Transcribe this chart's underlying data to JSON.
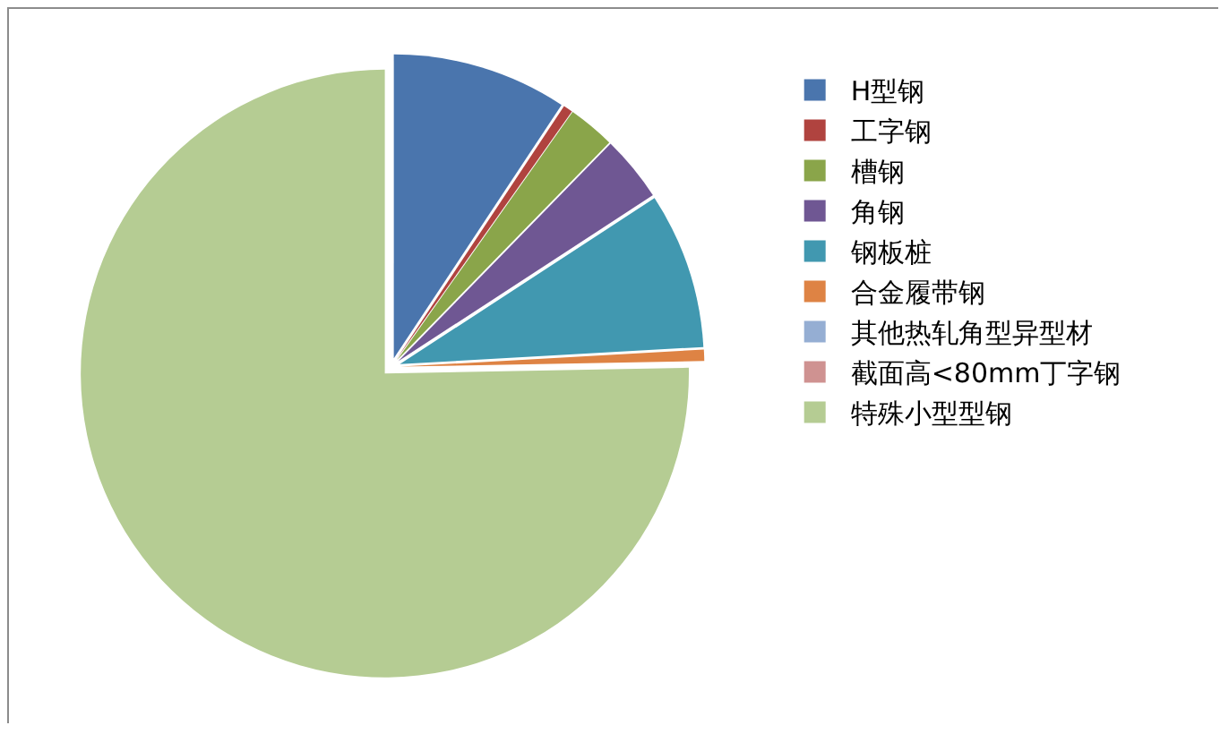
{
  "chart_data": {
    "type": "pie",
    "categories": [
      "H型钢",
      "工字钢",
      "槽钢",
      "角钢",
      "钢板桩",
      "合金履带钢",
      "其他热轧角型异型材",
      "截面高<80mm丁字钢",
      "特殊小型型钢"
    ],
    "values": [
      9.3,
      0.5,
      2.5,
      3.5,
      8.3,
      0.6,
      0,
      0,
      75.3
    ],
    "colors": [
      "#4a75ad",
      "#b0433f",
      "#8aa54a",
      "#6f5793",
      "#4198b0",
      "#de8344",
      "#95aed3",
      "#cf9291",
      "#b5cc93"
    ],
    "legend": "right"
  }
}
